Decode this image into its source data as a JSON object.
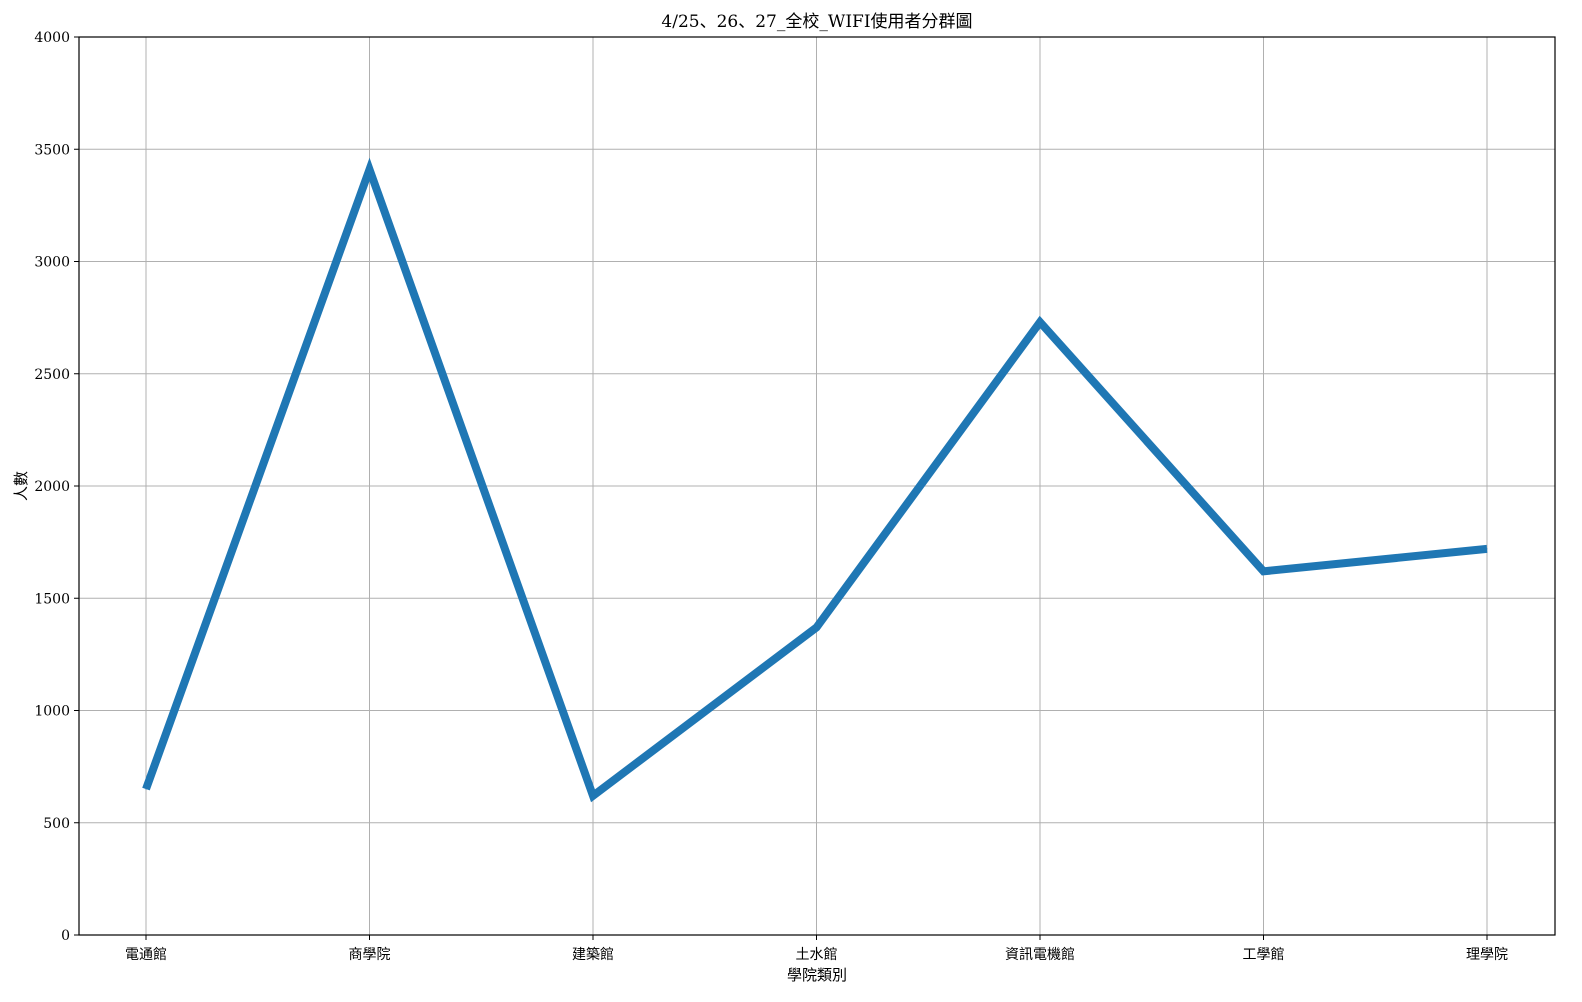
{
  "chart_data": {
    "type": "line",
    "title": "4/25、26、27_全校_WIFI使用者分群圖",
    "xlabel": "學院類別",
    "ylabel": "人數",
    "categories": [
      "電通館",
      "商學院",
      "建築館",
      "土水館",
      "資訊電機館",
      "工學館",
      "理學院"
    ],
    "series": [
      {
        "values": [
          650,
          3410,
          620,
          1370,
          2730,
          1620,
          1720
        ]
      }
    ],
    "ylim": [
      0,
      4000
    ],
    "yticks": [
      0,
      500,
      1000,
      1500,
      2000,
      2500,
      3000,
      3500,
      4000
    ],
    "grid": true,
    "colors": {
      "line": "#1f77b4",
      "grid": "#b0b0b0"
    }
  }
}
